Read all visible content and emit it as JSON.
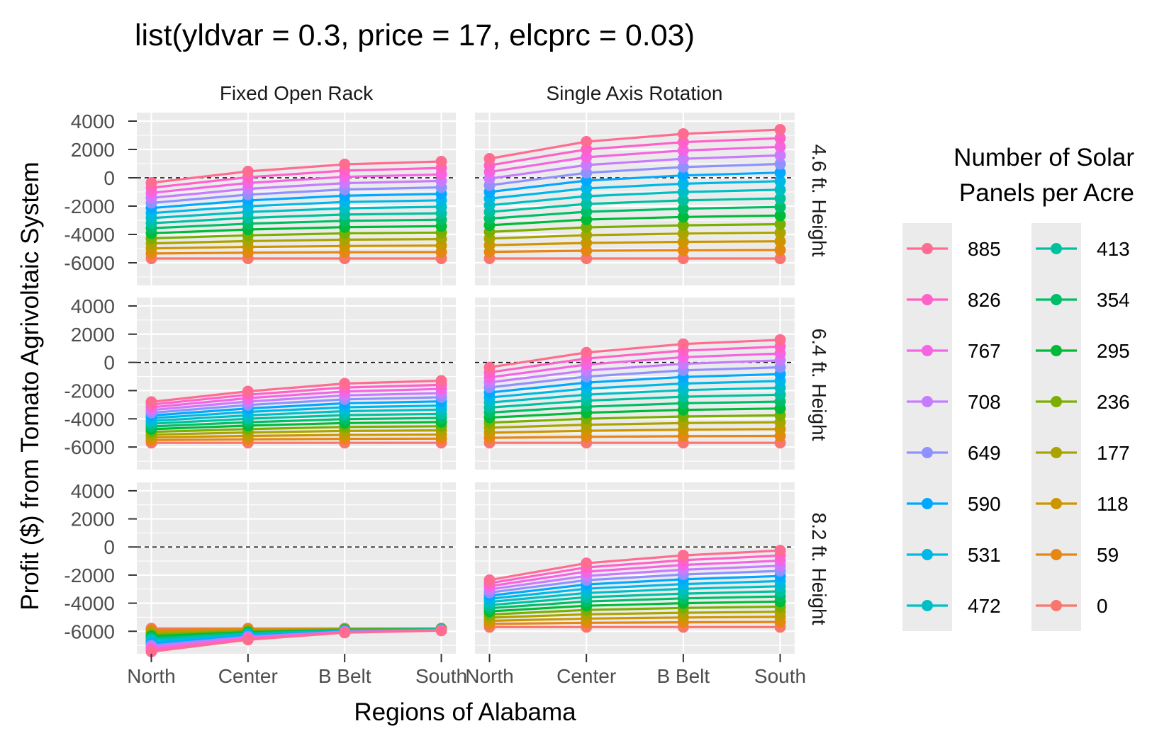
{
  "chart_data": {
    "type": "line",
    "title": "list(yldvar = 0.3, price = 17, elcprc = 0.03)",
    "xlabel": "Regions of Alabama",
    "ylabel": "Profit ($) from Tomato Agrivoltaic System",
    "categories": [
      "North",
      "Center",
      "B Belt",
      "South"
    ],
    "y_ticks": [
      "4000",
      "2000",
      "0",
      "-2000",
      "-4000",
      "-6000"
    ],
    "ylim": [
      -7600,
      4600
    ],
    "reference_line": {
      "y": 0,
      "style": "dashed",
      "color": "#000000"
    },
    "grid": true,
    "facet_cols": [
      "Fixed Open Rack",
      "Single Axis Rotation"
    ],
    "facet_rows": [
      "4.6 ft. Height",
      "6.4 ft. Height",
      "8.2 ft. Height"
    ],
    "legend": {
      "title_lines": [
        "Number of Solar",
        "Panels per Acre"
      ],
      "position": "right",
      "columns": [
        [
          "885",
          "826",
          "767",
          "708",
          "649",
          "590",
          "531",
          "472"
        ],
        [
          "413",
          "354",
          "295",
          "236",
          "177",
          "118",
          "59",
          "0"
        ]
      ]
    },
    "series_names": [
      "885",
      "826",
      "767",
      "708",
      "649",
      "590",
      "531",
      "472",
      "413",
      "354",
      "295",
      "236",
      "177",
      "118",
      "59",
      "0"
    ],
    "series_colors": [
      "#FF6C91",
      "#FF61C9",
      "#F564E3",
      "#C77CFF",
      "#8F91FF",
      "#00A9FF",
      "#00B8E7",
      "#00BFC4",
      "#00C19F",
      "#00BE67",
      "#00BA38",
      "#7CAE00",
      "#ABA300",
      "#CD9600",
      "#E68613",
      "#F8766D"
    ],
    "panels": [
      {
        "row": 0,
        "col": 0,
        "top": [
          -350,
          450,
          950,
          1150
        ],
        "bottom": [
          -5700,
          -5700,
          -5700,
          -5700
        ]
      },
      {
        "row": 0,
        "col": 1,
        "top": [
          1350,
          2550,
          3100,
          3400
        ],
        "bottom": [
          -5700,
          -5700,
          -5700,
          -5700
        ]
      },
      {
        "row": 1,
        "col": 0,
        "top": [
          -2800,
          -2050,
          -1500,
          -1300
        ],
        "bottom": [
          -5700,
          -5700,
          -5700,
          -5700
        ]
      },
      {
        "row": 1,
        "col": 1,
        "top": [
          -350,
          700,
          1300,
          1600
        ],
        "bottom": [
          -5700,
          -5700,
          -5700,
          -5700
        ]
      },
      {
        "row": 2,
        "col": 0,
        "top": [
          -7450,
          -6600,
          -6100,
          -5950
        ],
        "bottom": [
          -5800,
          -5800,
          -5800,
          -5800
        ]
      },
      {
        "row": 2,
        "col": 1,
        "top": [
          -2350,
          -1150,
          -600,
          -250
        ],
        "bottom": [
          -5700,
          -5700,
          -5700,
          -5700
        ]
      }
    ]
  }
}
